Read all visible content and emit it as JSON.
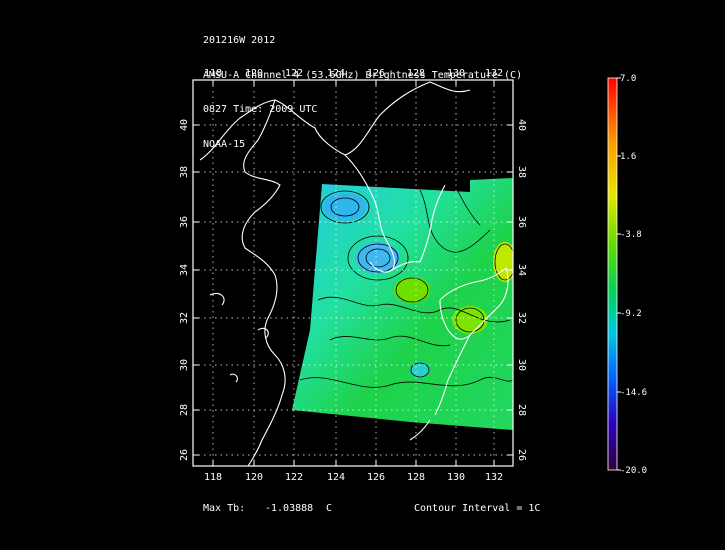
{
  "header": {
    "line1": "201216W 2012",
    "line2": "AMSU-A Channel 4 (53.6GHz) Brightness Temperature (C)",
    "line3": "0827 Time: 2009 UTC",
    "line4": "NOAA-15"
  },
  "map": {
    "lon_ticks": [
      "118",
      "120",
      "122",
      "124",
      "126",
      "128",
      "130",
      "132"
    ],
    "lat_ticks": [
      "40",
      "38",
      "36",
      "34",
      "32",
      "30",
      "28",
      "26"
    ],
    "lon_range": [
      116.5,
      133.3
    ],
    "lat_range": [
      25.5,
      42.2
    ]
  },
  "colorbar": {
    "labels": [
      "7.0",
      "1.6",
      "-3.8",
      "-9.2",
      "-14.6",
      "-20.0"
    ],
    "range": [
      -20.0,
      7.0
    ]
  },
  "footer": {
    "max_label": "Max Tb:",
    "max_value": "-1.03888",
    "max_unit": "C",
    "contour_label": "Contour Interval = 1C"
  },
  "colors": {
    "background": "#000000",
    "frame": "#ffffff",
    "coastline": "#ffffff",
    "grid": "#ffffff",
    "contour": "#000000"
  }
}
